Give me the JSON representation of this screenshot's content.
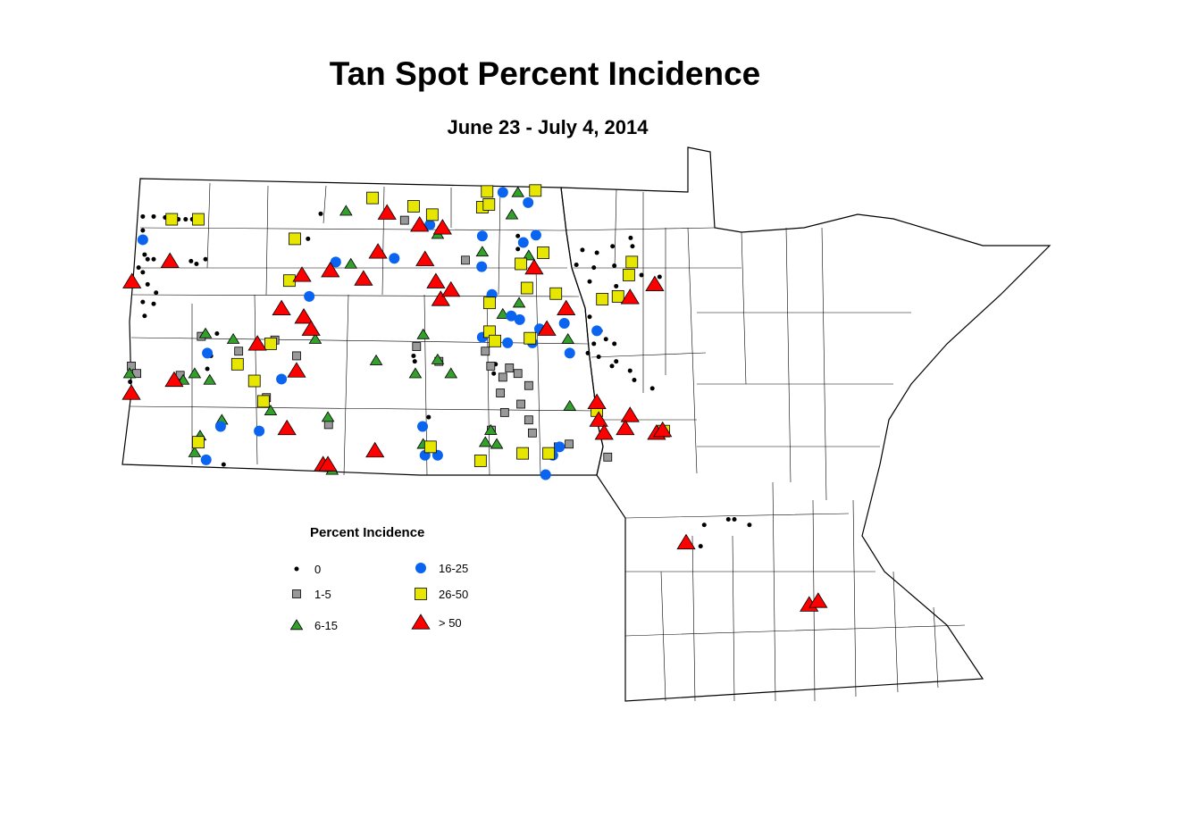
{
  "title": "Tan Spot Percent Incidence",
  "subtitle": "June 23 - July 4, 2014",
  "legend": {
    "title": "Percent Incidence",
    "items": [
      {
        "key": "c0",
        "label": "0"
      },
      {
        "key": "c1",
        "label": "1-5"
      },
      {
        "key": "c2",
        "label": "6-15"
      },
      {
        "key": "c3",
        "label": "16-25"
      },
      {
        "key": "c4",
        "label": "26-50"
      },
      {
        "key": "c5",
        "label": "> 50"
      }
    ]
  },
  "chart_data": {
    "type": "scatter",
    "title": "Tan Spot Percent Incidence",
    "subtitle": "June 23 - July 4, 2014",
    "region": "North Dakota and Minnesota county map",
    "legend_placement": "bottom-left",
    "categories": {
      "c0": {
        "label": "0",
        "symbol": "dot",
        "color": "#000000"
      },
      "c1": {
        "label": "1-5",
        "symbol": "square",
        "color": "#999999"
      },
      "c2": {
        "label": "6-15",
        "symbol": "triangle",
        "color": "#33a02c"
      },
      "c3": {
        "label": "16-25",
        "symbol": "circle",
        "color": "#0a64f0"
      },
      "c4": {
        "label": "26-50",
        "symbol": "square",
        "color": "#e6e600"
      },
      "c5": {
        "label": "> 50",
        "symbol": "triangle",
        "color": "#ff0000"
      }
    },
    "points": {
      "c5": [
        [
          -104.01,
          47.94
        ],
        [
          -103.38,
          48.16
        ],
        [
          -104.02,
          46.74
        ],
        [
          -103.31,
          46.88
        ],
        [
          -101.93,
          47.27
        ],
        [
          -101.53,
          47.65
        ],
        [
          -101.16,
          47.56
        ],
        [
          -101.04,
          47.43
        ],
        [
          -101.28,
          46.98
        ],
        [
          -101.44,
          46.36
        ],
        [
          -100.84,
          45.97
        ],
        [
          -100.76,
          45.97
        ],
        [
          -101.19,
          48.01
        ],
        [
          -100.72,
          48.06
        ],
        [
          -100.17,
          47.97
        ],
        [
          -99.93,
          48.26
        ],
        [
          -99.78,
          48.68
        ],
        [
          -99.24,
          48.55
        ],
        [
          -98.86,
          48.52
        ],
        [
          -99.15,
          48.18
        ],
        [
          -98.97,
          47.94
        ],
        [
          -98.89,
          47.75
        ],
        [
          -98.72,
          47.85
        ],
        [
          -97.34,
          48.09
        ],
        [
          -96.81,
          47.65
        ],
        [
          -97.13,
          47.43
        ],
        [
          -96.3,
          46.64
        ],
        [
          -96.27,
          46.45
        ],
        [
          -96.18,
          46.31
        ],
        [
          -95.75,
          46.5
        ],
        [
          -95.83,
          46.36
        ],
        [
          -95.31,
          46.31
        ],
        [
          -95.21,
          46.34
        ],
        [
          -95.34,
          47.91
        ],
        [
          -95.75,
          47.77
        ],
        [
          -99.98,
          46.12
        ],
        [
          -94.82,
          45.13
        ],
        [
          -92.78,
          44.46
        ],
        [
          -92.63,
          44.5
        ]
      ],
      "c3": [
        [
          -103.83,
          48.39
        ],
        [
          -102.76,
          47.17
        ],
        [
          -102.54,
          46.38
        ],
        [
          -102.78,
          46.02
        ],
        [
          -101.9,
          46.33
        ],
        [
          -101.53,
          46.89
        ],
        [
          -101.07,
          47.78
        ],
        [
          -100.63,
          48.15
        ],
        [
          -99.66,
          48.19
        ],
        [
          -99.07,
          48.55
        ],
        [
          -98.2,
          48.43
        ],
        [
          -98.21,
          48.1
        ],
        [
          -97.86,
          48.9
        ],
        [
          -97.44,
          48.79
        ],
        [
          -97.52,
          48.36
        ],
        [
          -97.31,
          48.44
        ],
        [
          -98.04,
          47.8
        ],
        [
          -97.72,
          47.57
        ],
        [
          -97.58,
          47.53
        ],
        [
          -97.25,
          47.43
        ],
        [
          -97.37,
          47.28
        ],
        [
          -97.78,
          47.28
        ],
        [
          -98.2,
          47.34
        ],
        [
          -96.84,
          47.49
        ],
        [
          -96.75,
          47.17
        ],
        [
          -96.3,
          47.41
        ],
        [
          -99.19,
          46.38
        ],
        [
          -99.15,
          46.07
        ],
        [
          -98.94,
          46.07
        ],
        [
          -96.92,
          46.16
        ],
        [
          -97.03,
          46.07
        ],
        [
          -97.15,
          45.86
        ]
      ],
      "c4": [
        [
          -103.35,
          48.61
        ],
        [
          -102.91,
          48.61
        ],
        [
          -101.31,
          48.4
        ],
        [
          -101.4,
          47.95
        ],
        [
          -100.02,
          48.84
        ],
        [
          -99.34,
          48.75
        ],
        [
          -99.03,
          48.66
        ],
        [
          -98.12,
          48.91
        ],
        [
          -97.32,
          48.92
        ],
        [
          -98.2,
          48.74
        ],
        [
          -98.09,
          48.77
        ],
        [
          -97.19,
          48.25
        ],
        [
          -97.56,
          48.13
        ],
        [
          -97.46,
          47.87
        ],
        [
          -96.98,
          47.81
        ],
        [
          -98.08,
          47.71
        ],
        [
          -98.08,
          47.4
        ],
        [
          -97.41,
          47.33
        ],
        [
          -97.99,
          47.3
        ],
        [
          -102.26,
          47.05
        ],
        [
          -101.71,
          47.27
        ],
        [
          -101.98,
          46.87
        ],
        [
          -101.83,
          46.65
        ],
        [
          -102.91,
          46.21
        ],
        [
          -98.23,
          46.01
        ],
        [
          -97.53,
          46.09
        ],
        [
          -97.1,
          46.09
        ],
        [
          -99.06,
          46.16
        ],
        [
          -96.3,
          46.55
        ],
        [
          -95.72,
          48.15
        ],
        [
          -95.77,
          48.01
        ],
        [
          -95.95,
          47.78
        ],
        [
          -96.21,
          47.75
        ],
        [
          -95.19,
          46.33
        ]
      ],
      "c2": [
        [
          -100.46,
          48.7
        ],
        [
          -100.38,
          48.13
        ],
        [
          -98.94,
          48.45
        ],
        [
          -98.2,
          48.26
        ],
        [
          -97.61,
          48.9
        ],
        [
          -97.71,
          48.66
        ],
        [
          -97.43,
          48.22
        ],
        [
          -97.59,
          47.71
        ],
        [
          -97.86,
          47.59
        ],
        [
          -96.78,
          47.32
        ],
        [
          -96.75,
          46.6
        ],
        [
          -99.18,
          47.37
        ],
        [
          -99.96,
          47.09
        ],
        [
          -99.31,
          46.95
        ],
        [
          -98.94,
          47.1
        ],
        [
          -98.72,
          46.95
        ],
        [
          -102.79,
          47.38
        ],
        [
          -102.33,
          47.32
        ],
        [
          -100.97,
          47.32
        ],
        [
          -102.97,
          46.95
        ],
        [
          -103.16,
          46.88
        ],
        [
          -102.72,
          46.88
        ],
        [
          -104.05,
          46.95
        ],
        [
          -102.52,
          46.45
        ],
        [
          -102.88,
          46.28
        ],
        [
          -102.97,
          46.1
        ],
        [
          -101.71,
          46.55
        ],
        [
          -100.76,
          46.48
        ],
        [
          -99.18,
          46.19
        ],
        [
          -98.15,
          46.21
        ],
        [
          -97.96,
          46.19
        ],
        [
          -98.06,
          46.34
        ],
        [
          -100.69,
          45.91
        ]
      ],
      "c1": [
        [
          -104.02,
          47.03
        ],
        [
          -103.93,
          46.95
        ],
        [
          -102.86,
          47.35
        ],
        [
          -101.64,
          47.31
        ],
        [
          -101.28,
          47.14
        ],
        [
          -102.24,
          47.19
        ],
        [
          -103.21,
          46.93
        ],
        [
          -99.29,
          47.24
        ],
        [
          -98.92,
          47.08
        ],
        [
          -99.49,
          48.6
        ],
        [
          -98.48,
          48.17
        ],
        [
          -98.15,
          47.19
        ],
        [
          -98.06,
          47.03
        ],
        [
          -97.86,
          46.91
        ],
        [
          -97.75,
          47.01
        ],
        [
          -97.61,
          46.95
        ],
        [
          -97.43,
          46.82
        ],
        [
          -97.9,
          46.74
        ],
        [
          -97.56,
          46.62
        ],
        [
          -97.83,
          46.53
        ],
        [
          -97.43,
          46.45
        ],
        [
          -97.37,
          46.31
        ],
        [
          -98.05,
          46.34
        ],
        [
          -100.75,
          46.4
        ],
        [
          -101.78,
          46.69
        ],
        [
          -96.94,
          46.16
        ],
        [
          -96.76,
          46.19
        ],
        [
          -96.12,
          46.05
        ]
      ],
      "c0": [
        [
          -103.83,
          48.64
        ],
        [
          -103.65,
          48.64
        ],
        [
          -103.46,
          48.63
        ],
        [
          -103.24,
          48.61
        ],
        [
          -103.12,
          48.61
        ],
        [
          -103.01,
          48.61
        ],
        [
          -103.83,
          48.49
        ],
        [
          -103.8,
          48.23
        ],
        [
          -103.75,
          48.18
        ],
        [
          -103.9,
          48.09
        ],
        [
          -103.83,
          48.04
        ],
        [
          -103.65,
          48.18
        ],
        [
          -103.75,
          47.91
        ],
        [
          -103.61,
          47.82
        ],
        [
          -103.65,
          47.7
        ],
        [
          -103.83,
          47.72
        ],
        [
          -103.8,
          47.57
        ],
        [
          -102.94,
          48.13
        ],
        [
          -102.79,
          48.18
        ],
        [
          -103.03,
          48.16
        ],
        [
          -102.7,
          47.14
        ],
        [
          -102.76,
          47.0
        ],
        [
          -102.6,
          47.38
        ],
        [
          -102.49,
          45.97
        ],
        [
          -104.04,
          46.86
        ],
        [
          -100.88,
          48.67
        ],
        [
          -101.09,
          48.4
        ],
        [
          -99.34,
          47.14
        ],
        [
          -99.32,
          47.08
        ],
        [
          -97.61,
          48.43
        ],
        [
          -97.61,
          48.29
        ],
        [
          -96.54,
          48.28
        ],
        [
          -96.3,
          48.25
        ],
        [
          -96.04,
          48.32
        ],
        [
          -95.74,
          48.41
        ],
        [
          -95.71,
          48.32
        ],
        [
          -96.64,
          48.12
        ],
        [
          -96.35,
          48.09
        ],
        [
          -96.42,
          47.94
        ],
        [
          -96.01,
          48.11
        ],
        [
          -95.98,
          47.89
        ],
        [
          -95.56,
          48.01
        ],
        [
          -95.26,
          47.99
        ],
        [
          -96.42,
          47.56
        ],
        [
          -96.24,
          47.41
        ],
        [
          -96.15,
          47.32
        ],
        [
          -96.35,
          47.27
        ],
        [
          -96.01,
          47.27
        ],
        [
          -96.27,
          47.13
        ],
        [
          -96.05,
          47.03
        ],
        [
          -95.75,
          46.98
        ],
        [
          -95.68,
          46.88
        ],
        [
          -95.38,
          46.79
        ],
        [
          -95.98,
          47.08
        ],
        [
          -96.45,
          47.17
        ],
        [
          -99.09,
          46.48
        ],
        [
          -97.98,
          47.05
        ],
        [
          -98.01,
          46.95
        ],
        [
          -94.52,
          45.32
        ],
        [
          -94.12,
          45.38
        ],
        [
          -94.02,
          45.38
        ],
        [
          -93.77,
          45.32
        ],
        [
          -94.58,
          45.09
        ]
      ]
    }
  }
}
